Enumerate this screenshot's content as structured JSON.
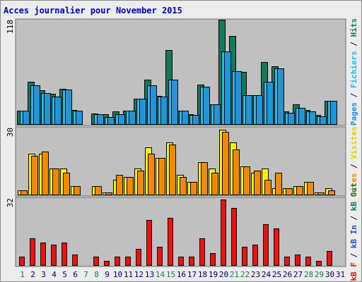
{
  "title": "Acces journalier pour November 2015",
  "colors": {
    "frame_bg": "#ececec",
    "panel_bg": "#c0c0c0",
    "title": "#0000cc",
    "hits": "#127a5a",
    "files": "#22bbee",
    "pages": "#2294d8",
    "visits": "#f7f000",
    "sites": "#f08a00",
    "kb": "#ee1111",
    "weekend_label": "#127a5a",
    "weekday_label": "#000066"
  },
  "right_labels": {
    "pages": "Pages",
    "files": "Fichiers",
    "hits": "Hits",
    "sites": "Sites",
    "visits": "Visites",
    "kb_f": "kB F",
    "kb_in": "kB In",
    "kb_out": "kB Out",
    "sep": " / "
  },
  "chart_data": [
    {
      "type": "bar",
      "name": "hits-files-pages",
      "categories": [
        "1",
        "2",
        "3",
        "4",
        "5",
        "6",
        "7",
        "8",
        "9",
        "10",
        "11",
        "12",
        "13",
        "14",
        "15",
        "16",
        "17",
        "18",
        "19",
        "20",
        "21",
        "22",
        "23",
        "24",
        "25",
        "26",
        "27",
        "28",
        "29",
        "30",
        "31"
      ],
      "y_axis_label": "118",
      "ylim": [
        0,
        118
      ],
      "series": [
        {
          "name": "Hits",
          "values": [
            15,
            48,
            38,
            34,
            40,
            16,
            0,
            12,
            11,
            14,
            15,
            29,
            50,
            32,
            84,
            15,
            11,
            45,
            22,
            118,
            100,
            59,
            33,
            70,
            65,
            14,
            22,
            16,
            10,
            26,
            0
          ]
        },
        {
          "name": "Fichiers",
          "values": [
            15,
            44,
            35,
            31,
            39,
            15,
            0,
            11,
            8,
            11,
            15,
            29,
            44,
            31,
            50,
            15,
            10,
            42,
            22,
            82,
            60,
            33,
            33,
            48,
            63,
            13,
            18,
            14,
            9,
            26,
            0
          ]
        },
        {
          "name": "Pages",
          "values": [
            15,
            44,
            35,
            31,
            39,
            15,
            0,
            11,
            8,
            11,
            15,
            29,
            44,
            31,
            50,
            15,
            10,
            42,
            22,
            82,
            60,
            33,
            33,
            48,
            63,
            13,
            18,
            14,
            9,
            26,
            0
          ]
        }
      ]
    },
    {
      "type": "bar",
      "name": "visits-sites",
      "categories": [
        "1",
        "2",
        "3",
        "4",
        "5",
        "6",
        "7",
        "8",
        "9",
        "10",
        "11",
        "12",
        "13",
        "14",
        "15",
        "16",
        "17",
        "18",
        "19",
        "20",
        "21",
        "22",
        "23",
        "24",
        "25",
        "26",
        "27",
        "28",
        "29",
        "30",
        "31"
      ],
      "y_axis_label": "30",
      "ylim": [
        0,
        30
      ],
      "series": [
        {
          "name": "Visites",
          "values": [
            2,
            19,
            19,
            12,
            12,
            4,
            0,
            4,
            1,
            7,
            8,
            12,
            22,
            17,
            24,
            9,
            6,
            15,
            12,
            30,
            24,
            13,
            10,
            12,
            3,
            3,
            4,
            6,
            1,
            3,
            0
          ]
        },
        {
          "name": "Sites",
          "values": [
            2,
            18,
            20,
            12,
            10,
            4,
            0,
            4,
            1,
            9,
            8,
            11,
            19,
            17,
            23,
            8,
            6,
            15,
            10,
            29,
            21,
            13,
            11,
            7,
            10,
            3,
            4,
            6,
            1,
            2,
            0
          ]
        }
      ]
    },
    {
      "type": "bar",
      "name": "kb",
      "categories": [
        "1",
        "2",
        "3",
        "4",
        "5",
        "6",
        "7",
        "8",
        "9",
        "10",
        "11",
        "12",
        "13",
        "14",
        "15",
        "16",
        "17",
        "18",
        "19",
        "20",
        "21",
        "22",
        "23",
        "24",
        "25",
        "26",
        "27",
        "28",
        "29",
        "30",
        "31"
      ],
      "x_labels": [
        "1",
        "2",
        "3",
        "4",
        "5",
        "6",
        "7",
        "8",
        "9",
        "10",
        "11",
        "12",
        "13",
        "14",
        "15",
        "16",
        "17",
        "18",
        "19",
        "20",
        "21",
        "22",
        "23",
        "24",
        "25",
        "26",
        "27",
        "28",
        "29",
        "30",
        "31"
      ],
      "weekend_days": [
        1,
        7,
        8,
        14,
        15,
        21,
        22,
        28,
        29
      ],
      "y_axis_label": "32",
      "ylim": [
        0,
        32
      ],
      "series": [
        {
          "name": "kB F",
          "values": [
            4,
            13,
            11,
            10,
            11,
            5,
            0,
            4,
            2,
            4,
            4,
            8,
            22,
            9,
            23,
            4,
            4,
            13,
            6,
            32,
            28,
            9,
            10,
            20,
            18,
            4,
            5,
            4,
            2,
            7,
            0
          ]
        }
      ]
    }
  ]
}
